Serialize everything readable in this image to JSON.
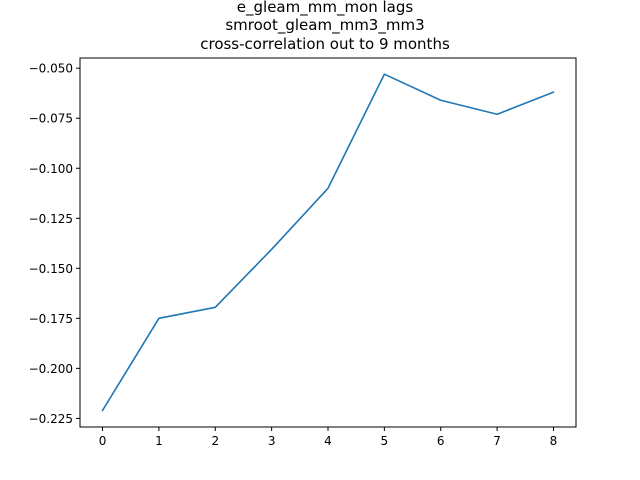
{
  "chart_data": {
    "type": "line",
    "title_lines": [
      "e_gleam_mm_mon lags",
      "smroot_gleam_mm3_mm3",
      "cross-correlation out to 9 months"
    ],
    "xlabel": "",
    "ylabel": "",
    "x": [
      0,
      1,
      2,
      3,
      4,
      5,
      6,
      7,
      8
    ],
    "series": [
      {
        "values": [
          -0.221,
          -0.175,
          -0.1695,
          -0.1405,
          -0.11,
          -0.053,
          -0.066,
          -0.073,
          -0.062
        ],
        "color": "#1f77b4"
      }
    ],
    "xticks": [
      0,
      1,
      2,
      3,
      4,
      5,
      6,
      7,
      8
    ],
    "yticks": [
      -0.225,
      -0.2,
      -0.175,
      -0.15,
      -0.125,
      -0.1,
      -0.075,
      -0.05
    ],
    "ytick_labels": [
      "−0.225",
      "−0.200",
      "−0.175",
      "−0.150",
      "−0.125",
      "−0.100",
      "−0.075",
      "−0.050"
    ],
    "xlim": [
      -0.4,
      8.4
    ],
    "ylim": [
      -0.2293,
      -0.0449
    ],
    "grid": false,
    "legend": "none"
  }
}
